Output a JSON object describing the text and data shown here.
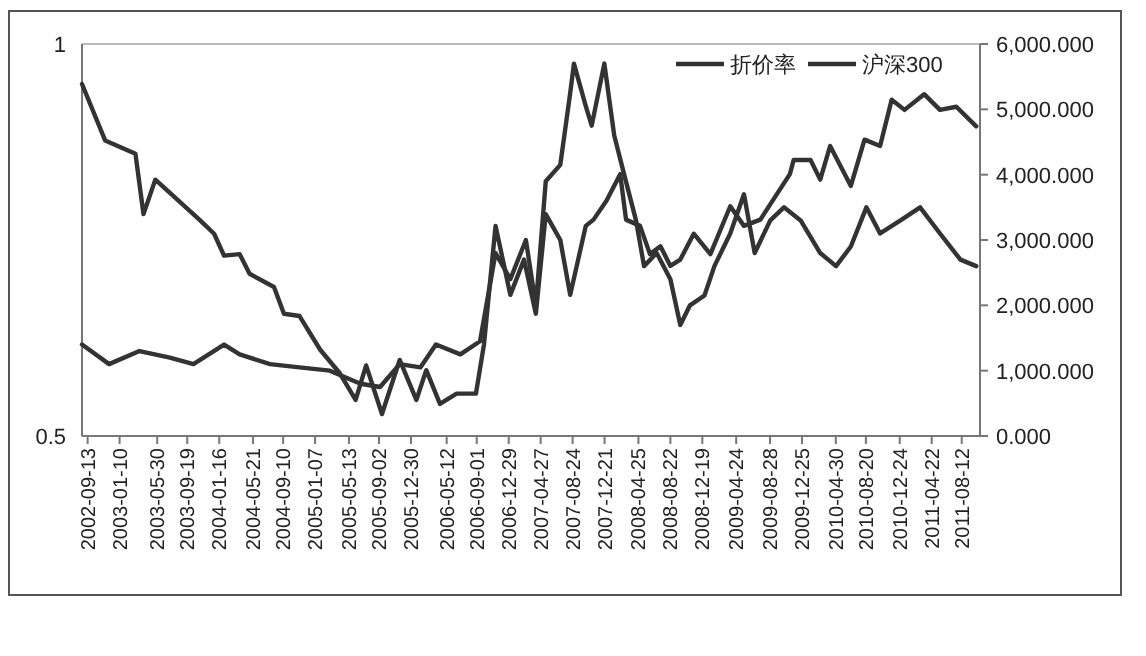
{
  "chart_data": {
    "type": "line",
    "legend": "top right",
    "grid": false,
    "marker": "none",
    "line_style": "solid",
    "xlim": [
      "2002-08-23",
      "2011-10-19"
    ],
    "xticks": [
      "2002-09-13",
      "2003-01-10",
      "2003-05-30",
      "2003-09-19",
      "2004-01-16",
      "2004-05-21",
      "2004-09-10",
      "2005-01-07",
      "2005-05-13",
      "2005-09-02",
      "2005-12-30",
      "2006-05-12",
      "2006-09-01",
      "2006-12-29",
      "2007-04-27",
      "2007-08-24",
      "2007-12-21",
      "2008-04-25",
      "2008-08-22",
      "2008-12-19",
      "2009-04-24",
      "2009-08-28",
      "2009-12-25",
      "2010-04-30",
      "2010-08-20",
      "2010-12-24",
      "2011-04-22",
      "2011-08-12"
    ],
    "ylim": [
      0.5,
      1
    ],
    "yticks": [
      0.5,
      1
    ],
    "y2lim": [
      0,
      6000
    ],
    "y2ticks": [
      {
        "value": 0,
        "label": "0.000"
      },
      {
        "value": 1000,
        "label": "1,000.000"
      },
      {
        "value": 2000,
        "label": "2,000.000"
      },
      {
        "value": 3000,
        "label": "3,000.000"
      },
      {
        "value": 4000,
        "label": "4,000.000"
      },
      {
        "value": 5000,
        "label": "5,000.000"
      },
      {
        "value": 6000,
        "label": "6,000.000"
      }
    ],
    "series": [
      {
        "name": "折价率",
        "color": "#333333",
        "x": [
          "2002-08-23",
          "2002-11-17",
          "2003-03-10",
          "2003-04-09",
          "2003-05-23",
          "2003-11-03",
          "2003-12-28",
          "2004-02-03",
          "2004-04-01",
          "2004-05-08",
          "2004-08-07",
          "2004-09-13",
          "2004-11-10",
          "2005-01-26",
          "2005-04-09",
          "2005-06-07",
          "2005-07-16",
          "2005-09-13",
          "2005-11-18",
          "2006-01-19",
          "2006-02-25",
          "2006-04-17",
          "2006-06-18",
          "2006-08-29",
          "2006-09-28",
          "2006-11-10",
          "2007-01-04",
          "2007-02-24",
          "2007-04-09",
          "2007-05-16",
          "2007-07-09",
          "2007-08-15",
          "2007-10-12",
          "2007-11-10",
          "2007-12-28",
          "2008-02-17",
          "2008-03-10",
          "2008-05-01",
          "2008-06-07",
          "2008-07-16",
          "2008-08-22",
          "2008-09-28",
          "2008-11-17",
          "2009-01-18",
          "2009-04-02",
          "2009-05-23",
          "2009-07-23",
          "2009-11-10",
          "2009-11-24",
          "2010-01-26",
          "2010-03-03",
          "2010-04-09",
          "2010-06-25",
          "2010-08-15",
          "2010-10-12",
          "2010-11-24",
          "2011-01-11",
          "2011-03-25",
          "2011-05-23",
          "2011-07-23",
          "2011-10-05"
        ],
        "values": [
          0.949,
          0.877,
          0.86,
          0.783,
          0.827,
          0.776,
          0.758,
          0.73,
          0.732,
          0.707,
          0.69,
          0.656,
          0.653,
          0.61,
          0.58,
          0.546,
          0.59,
          0.528,
          0.597,
          0.546,
          0.584,
          0.541,
          0.554,
          0.554,
          0.617,
          0.768,
          0.68,
          0.725,
          0.656,
          0.783,
          0.75,
          0.68,
          0.768,
          0.776,
          0.8,
          0.834,
          0.776,
          0.768,
          0.732,
          0.742,
          0.717,
          0.725,
          0.758,
          0.732,
          0.793,
          0.768,
          0.776,
          0.834,
          0.852,
          0.852,
          0.827,
          0.87,
          0.819,
          0.878,
          0.87,
          0.929,
          0.916,
          0.936,
          0.916,
          0.92,
          0.895
        ]
      },
      {
        "name": "沪深300",
        "color": "#333333",
        "axis": "y2",
        "x": [
          "2002-08-23",
          "2002-12-02",
          "2003-03-25",
          "2003-07-16",
          "2003-10-12",
          "2004-02-03",
          "2004-04-01",
          "2004-07-23",
          "2004-11-10",
          "2005-03-03",
          "2005-06-25",
          "2005-09-06",
          "2005-11-18",
          "2006-02-03",
          "2006-04-02",
          "2006-07-02",
          "2006-09-13",
          "2006-11-10",
          "2007-01-04",
          "2007-03-03",
          "2007-04-09",
          "2007-05-16",
          "2007-07-09",
          "2007-08-15",
          "2007-08-29",
          "2007-10-12",
          "2007-11-03",
          "2007-12-20",
          "2008-01-26",
          "2008-03-03",
          "2008-04-16",
          "2008-05-16",
          "2008-07-02",
          "2008-08-22",
          "2008-09-28",
          "2008-11-03",
          "2008-12-27",
          "2009-02-02",
          "2009-04-02",
          "2009-05-23",
          "2009-07-02",
          "2009-08-29",
          "2009-10-19",
          "2009-12-20",
          "2010-03-03",
          "2010-05-01",
          "2010-06-25",
          "2010-08-22",
          "2010-10-12",
          "2010-12-27",
          "2011-03-10",
          "2011-05-23",
          "2011-08-07",
          "2011-10-05"
        ],
        "values": [
          1400,
          1100,
          1300,
          1200,
          1100,
          1400,
          1250,
          1100,
          1050,
          1000,
          800,
          750,
          1100,
          1050,
          1400,
          1250,
          1450,
          2800,
          2400,
          3000,
          2000,
          3900,
          4150,
          5250,
          5700,
          5050,
          4750,
          5700,
          4600,
          4000,
          3300,
          2600,
          2800,
          2400,
          1700,
          2000,
          2150,
          2600,
          3100,
          3700,
          2800,
          3300,
          3500,
          3300,
          2800,
          2600,
          2900,
          3500,
          3100,
          3300,
          3500,
          3100,
          2700,
          2600
        ]
      }
    ]
  }
}
